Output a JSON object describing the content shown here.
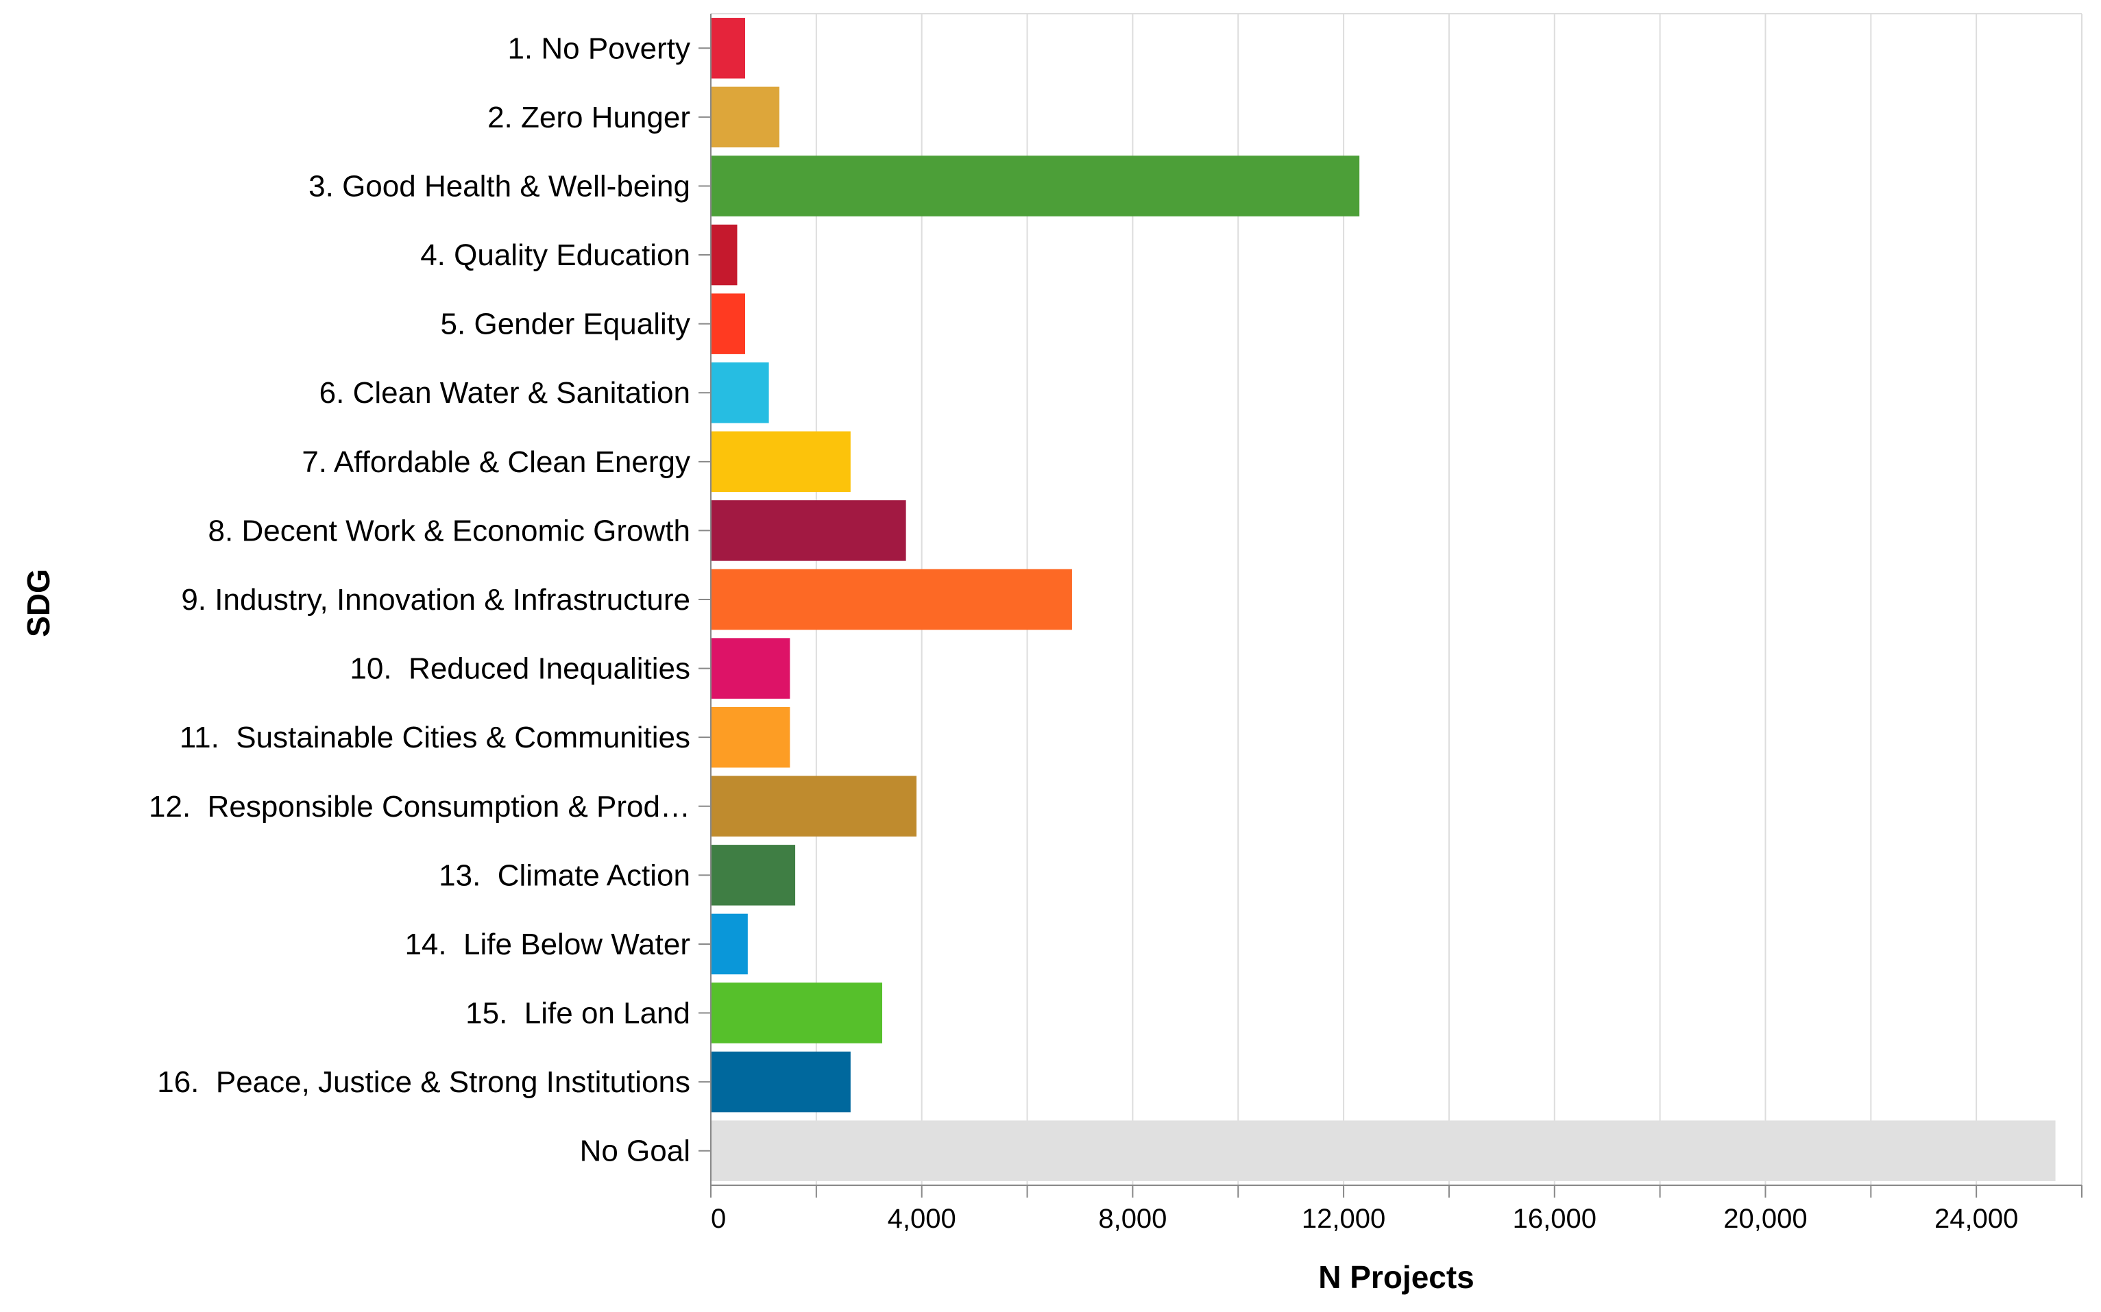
{
  "chart_data": {
    "type": "bar",
    "orientation": "horizontal",
    "title": "",
    "xlabel": "N Projects",
    "ylabel": "SDG",
    "xlim": [
      0,
      26000
    ],
    "x_ticks": [
      0,
      4000,
      8000,
      12000,
      16000,
      20000,
      24000
    ],
    "x_tick_labels": [
      "0",
      "4,000",
      "8,000",
      "12,000",
      "16,000",
      "20,000",
      "24,000"
    ],
    "grid": true,
    "legend": "none",
    "categories": [
      "1. No Poverty",
      "2. Zero Hunger",
      "3. Good Health & Well-being",
      "4. Quality Education",
      "5. Gender Equality",
      "6. Clean Water & Sanitation",
      "7. Affordable & Clean Energy",
      "8. Decent Work & Economic Growth",
      "9. Industry, Innovation & Infrastructure",
      "10.  Reduced Inequalities",
      "11.  Sustainable Cities & Communities",
      "12.  Responsible Consumption & Prod…",
      "13.  Climate Action",
      "14.  Life Below Water",
      "15.  Life on Land",
      "16.  Peace, Justice & Strong Institutions",
      "No Goal"
    ],
    "values": [
      650,
      1300,
      12300,
      500,
      650,
      1100,
      2650,
      3700,
      6850,
      1500,
      1500,
      3900,
      1600,
      700,
      3250,
      2650,
      25500
    ],
    "colors": [
      "#e5243b",
      "#dda63a",
      "#4c9f38",
      "#c5192d",
      "#ff3a21",
      "#26bde2",
      "#fcc30b",
      "#a21942",
      "#fd6925",
      "#dd1367",
      "#fd9d24",
      "#bf8b2e",
      "#3f7e44",
      "#0a97d9",
      "#56c02b",
      "#00689d",
      "#e0e0e0"
    ],
    "axis_color": "#888888",
    "grid_color": "#dddddd"
  }
}
